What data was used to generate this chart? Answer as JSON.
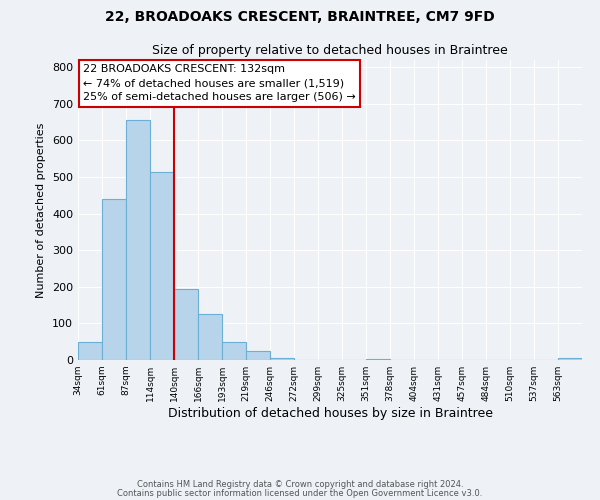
{
  "title": "22, BROADOAKS CRESCENT, BRAINTREE, CM7 9FD",
  "subtitle": "Size of property relative to detached houses in Braintree",
  "xlabel": "Distribution of detached houses by size in Braintree",
  "ylabel": "Number of detached properties",
  "bin_labels": [
    "34sqm",
    "61sqm",
    "87sqm",
    "114sqm",
    "140sqm",
    "166sqm",
    "193sqm",
    "219sqm",
    "246sqm",
    "272sqm",
    "299sqm",
    "325sqm",
    "351sqm",
    "378sqm",
    "404sqm",
    "431sqm",
    "457sqm",
    "484sqm",
    "510sqm",
    "537sqm",
    "563sqm"
  ],
  "bar_values": [
    50,
    440,
    655,
    515,
    193,
    127,
    50,
    25,
    5,
    0,
    0,
    0,
    2,
    0,
    0,
    0,
    0,
    0,
    0,
    0,
    5
  ],
  "bar_color": "#b8d4ea",
  "bar_edge_color": "#6baed6",
  "vline_x": 4,
  "vline_color": "#cc0000",
  "annotation_line1": "22 BROADOAKS CRESCENT: 132sqm",
  "annotation_line2": "← 74% of detached houses are smaller (1,519)",
  "annotation_line3": "25% of semi-detached houses are larger (506) →",
  "ylim": [
    0,
    820
  ],
  "yticks": [
    0,
    100,
    200,
    300,
    400,
    500,
    600,
    700,
    800
  ],
  "footer1": "Contains HM Land Registry data © Crown copyright and database right 2024.",
  "footer2": "Contains public sector information licensed under the Open Government Licence v3.0.",
  "bg_color": "#eef2f7",
  "plot_bg_color": "#eef2f7",
  "grid_color": "#ffffff"
}
